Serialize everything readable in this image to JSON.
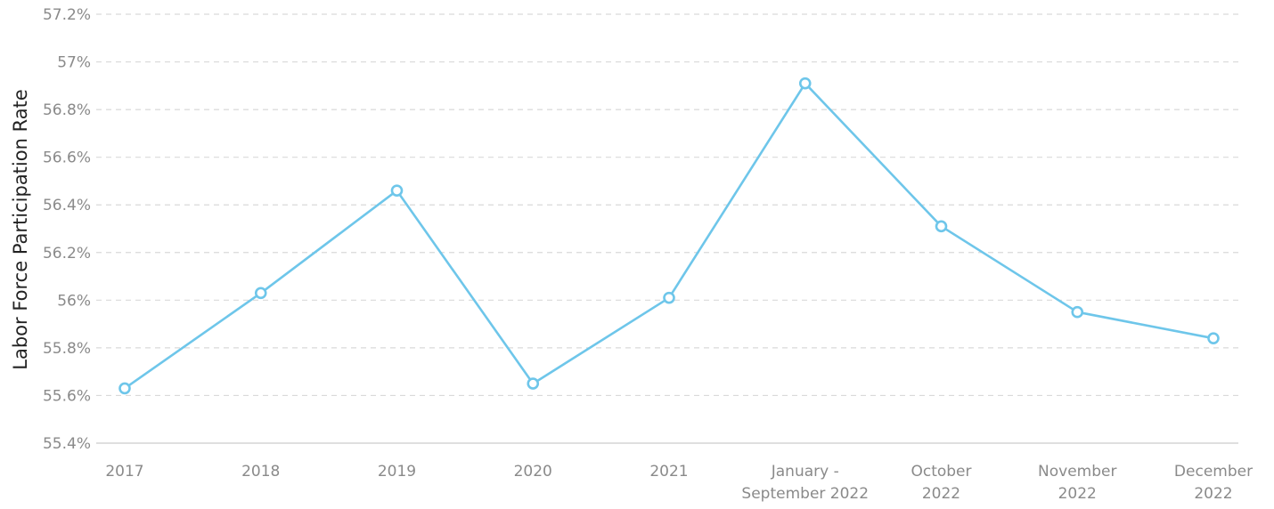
{
  "chart_data": {
    "type": "line",
    "title": "",
    "xlabel": "",
    "ylabel": "Labor Force Participation Rate",
    "categories": [
      [
        "2017"
      ],
      [
        "2018"
      ],
      [
        "2019"
      ],
      [
        "2020"
      ],
      [
        "2021"
      ],
      [
        "January -",
        "September 2022"
      ],
      [
        "October",
        "2022"
      ],
      [
        "November",
        "2022"
      ],
      [
        "December",
        "2022"
      ]
    ],
    "y_ticks": [
      "55.4%",
      "55.6%",
      "55.8%",
      "56%",
      "56.2%",
      "56.4%",
      "56.6%",
      "56.8%",
      "57%",
      "57.2%"
    ],
    "ylim": [
      55.4,
      57.2
    ],
    "grid": true,
    "series": [
      {
        "values": [
          55.63,
          56.03,
          56.46,
          55.65,
          56.01,
          56.91,
          56.31,
          55.95,
          55.84
        ]
      }
    ],
    "colors": {
      "line": "#6ec6ea",
      "marker_fill": "#ffffff",
      "grid": "#d9d9d9",
      "axis": "#cccccc",
      "tick_text": "#8a8a8a",
      "label_text": "#222222"
    }
  }
}
